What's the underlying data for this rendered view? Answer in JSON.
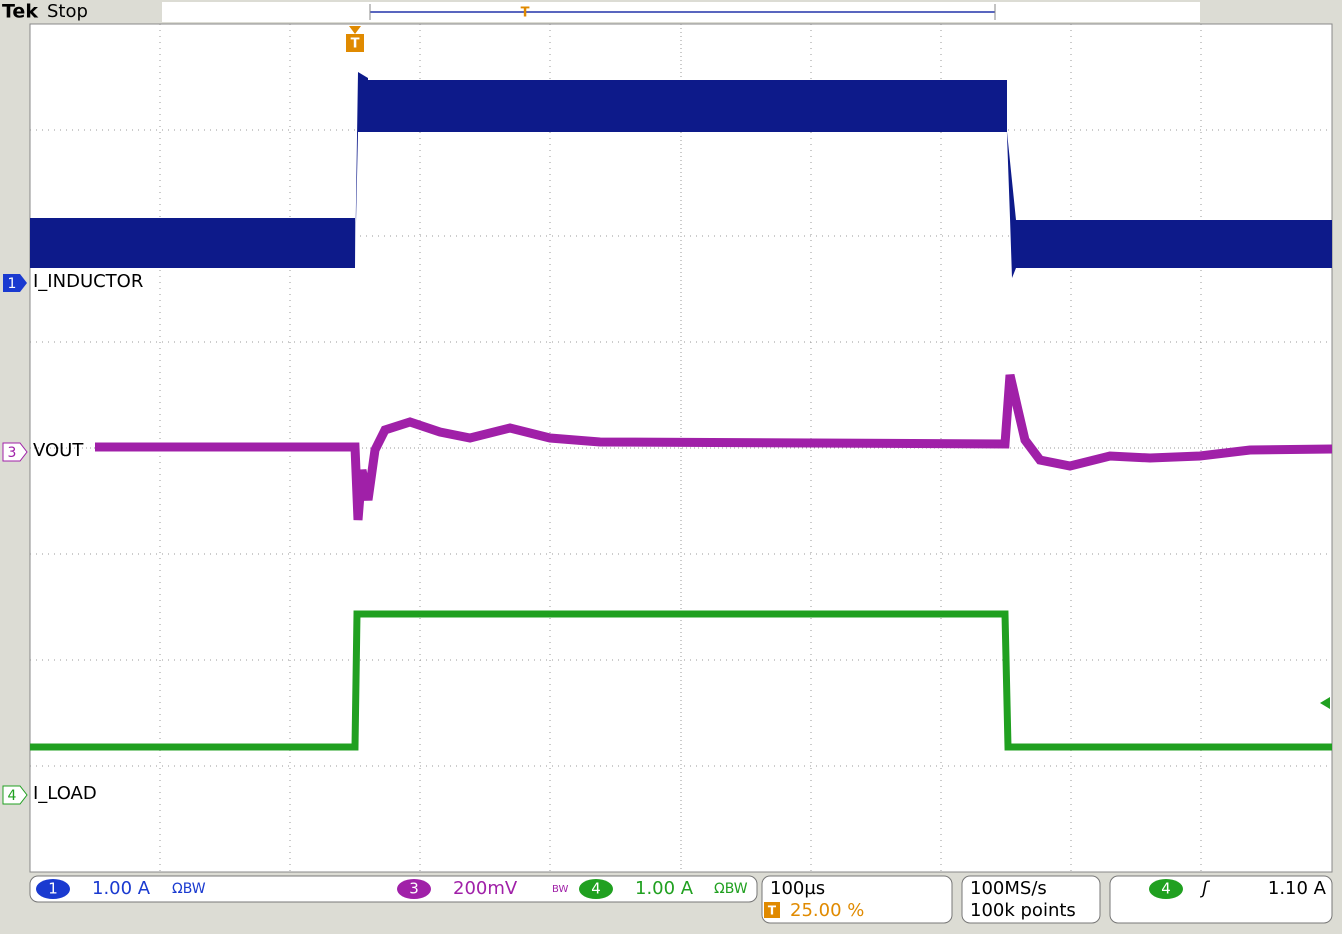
{
  "header": {
    "brand": "Tek",
    "status": "Stop",
    "trigger_marker": "T",
    "position_marker": "T"
  },
  "channels": [
    {
      "number": "1",
      "label": "I_INDUCTOR"
    },
    {
      "number": "3",
      "label": "VOUT"
    },
    {
      "number": "4",
      "label": "I_LOAD"
    }
  ],
  "readouts": {
    "ch1": {
      "number": "1",
      "scale": "1.00 A",
      "flags": "ΩBW"
    },
    "ch3": {
      "number": "3",
      "scale": "200mV",
      "flags": "BW"
    },
    "ch4": {
      "number": "4",
      "scale": "1.00 A",
      "flags": "ΩBW"
    },
    "timebase": {
      "scale": "100µs",
      "trigger_icon": "T",
      "position": "25.00 %"
    },
    "acquisition": {
      "rate": "100MS/s",
      "length": "100k points"
    },
    "trigger": {
      "source": "4",
      "slope": "ʃ",
      "level": "1.10 A"
    }
  }
}
